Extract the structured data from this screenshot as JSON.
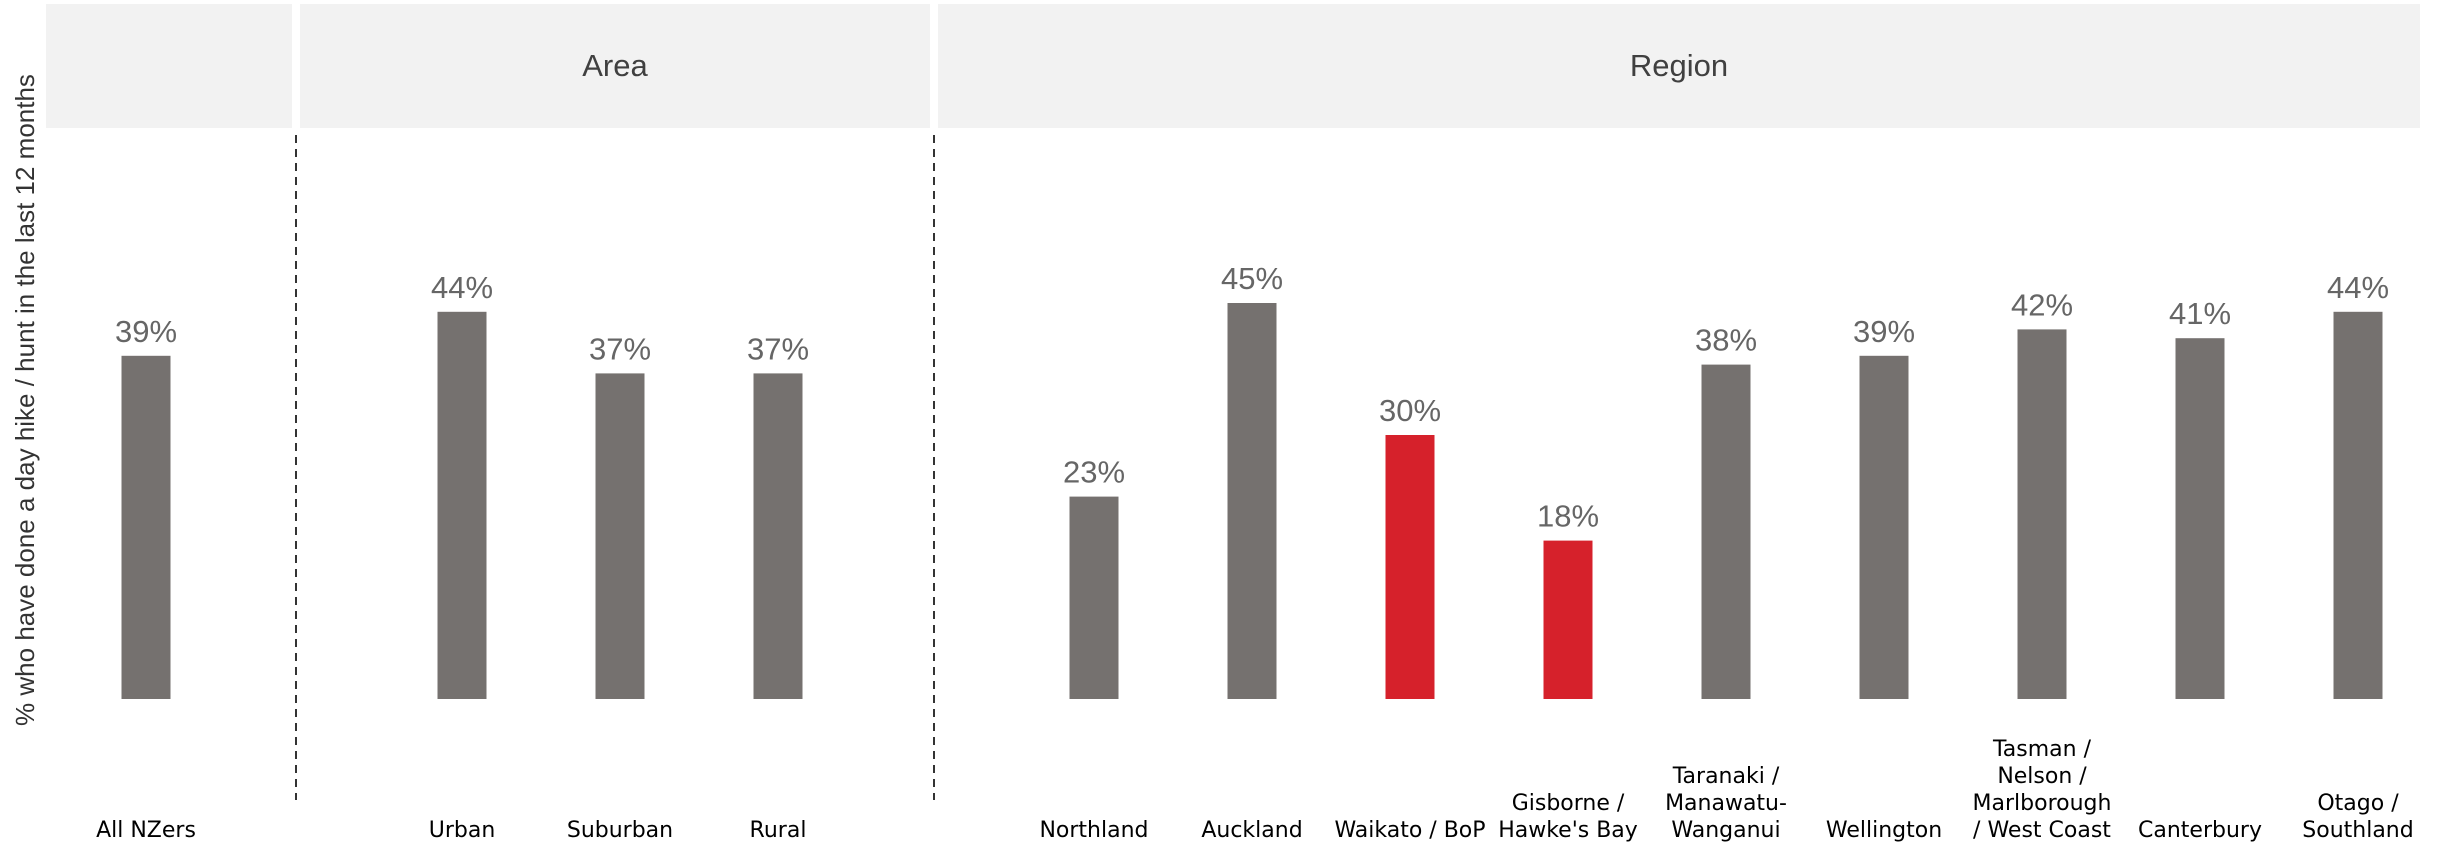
{
  "chart_data": {
    "type": "bar",
    "ylabel": "% who have done a day hike / hunt in the last 12 months",
    "ylim": [
      0,
      100
    ],
    "grid": false,
    "legend": "none",
    "colors": {
      "default": "#75716f",
      "highlight": "#d6212b",
      "header_bg": "#f2f2f2"
    },
    "groups": [
      {
        "header": "",
        "categories": [
          {
            "label": [
              "All NZers"
            ],
            "value": 39,
            "value_label": "39%",
            "highlight": false
          }
        ]
      },
      {
        "header": "Area",
        "categories": [
          {
            "label": [
              "Urban"
            ],
            "value": 44,
            "value_label": "44%",
            "highlight": false
          },
          {
            "label": [
              "Suburban"
            ],
            "value": 37,
            "value_label": "37%",
            "highlight": false
          },
          {
            "label": [
              "Rural"
            ],
            "value": 37,
            "value_label": "37%",
            "highlight": false
          }
        ]
      },
      {
        "header": "Region",
        "categories": [
          {
            "label": [
              "Northland"
            ],
            "value": 23,
            "value_label": "23%",
            "highlight": false
          },
          {
            "label": [
              "Auckland"
            ],
            "value": 45,
            "value_label": "45%",
            "highlight": false
          },
          {
            "label": [
              "Waikato / BoP"
            ],
            "value": 30,
            "value_label": "30%",
            "highlight": true
          },
          {
            "label": [
              "Gisborne /",
              "Hawke's Bay"
            ],
            "value": 18,
            "value_label": "18%",
            "highlight": true
          },
          {
            "label": [
              "Taranaki /",
              "Manawatu-",
              "Wanganui"
            ],
            "value": 38,
            "value_label": "38%",
            "highlight": false
          },
          {
            "label": [
              "Wellington"
            ],
            "value": 39,
            "value_label": "39%",
            "highlight": false
          },
          {
            "label": [
              "Tasman /",
              "Nelson /",
              "Marlborough",
              "/ West Coast"
            ],
            "value": 42,
            "value_label": "42%",
            "highlight": false
          },
          {
            "label": [
              "Canterbury"
            ],
            "value": 41,
            "value_label": "41%",
            "highlight": false
          },
          {
            "label": [
              "Otago /",
              "Southland"
            ],
            "value": 44,
            "value_label": "44%",
            "highlight": false
          }
        ]
      }
    ]
  }
}
